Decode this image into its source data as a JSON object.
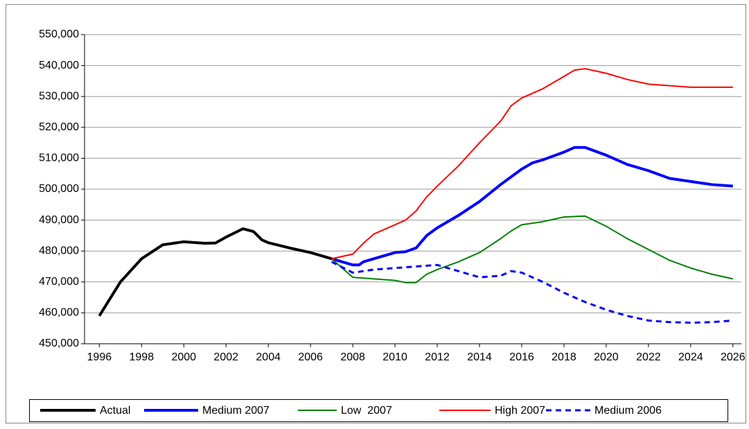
{
  "chart_data": {
    "type": "line",
    "xlim": [
      1995.3,
      2026.4
    ],
    "xticks": [
      1996,
      1998,
      2000,
      2002,
      2004,
      2006,
      2008,
      2010,
      2012,
      2014,
      2016,
      2018,
      2020,
      2022,
      2024,
      2026
    ],
    "ylim": [
      450000,
      550000
    ],
    "yticks": [
      {
        "value": 450000,
        "label": "450,000"
      },
      {
        "value": 460000,
        "label": "460,000"
      },
      {
        "value": 470000,
        "label": "470,000"
      },
      {
        "value": 480000,
        "label": "480,000"
      },
      {
        "value": 490000,
        "label": "490,000"
      },
      {
        "value": 500000,
        "label": "500,000"
      },
      {
        "value": 510000,
        "label": "510,000"
      },
      {
        "value": 520000,
        "label": "520,000"
      },
      {
        "value": 530000,
        "label": "530,000"
      },
      {
        "value": 540000,
        "label": "540,000"
      },
      {
        "value": 550000,
        "label": "550,000"
      }
    ],
    "grid": true,
    "legend": "bottom",
    "series": [
      {
        "name": "Actual",
        "color": "#000000",
        "width": 4,
        "x": [
          1996,
          1997,
          1998,
          1999,
          2000,
          2001,
          2001.5,
          2002,
          2002.8,
          2003.3,
          2003.7,
          2004,
          2005,
          2006,
          2007
        ],
        "values": [
          459000,
          470000,
          477500,
          482000,
          483000,
          482500,
          482600,
          484500,
          487200,
          486300,
          483600,
          482700,
          481000,
          479500,
          477500
        ]
      },
      {
        "name": "Medium 2007",
        "color": "#0000ff",
        "width": 4,
        "x": [
          2007,
          2007.5,
          2008,
          2008.3,
          2008.5,
          2009,
          2010,
          2010.5,
          2011,
          2011.5,
          2012,
          2013,
          2014,
          2015,
          2016,
          2016.5,
          2017,
          2018,
          2018.5,
          2019,
          2020,
          2021,
          2022,
          2023,
          2024,
          2025,
          2026
        ],
        "values": [
          477500,
          476500,
          475500,
          475500,
          476500,
          477500,
          479500,
          479800,
          481000,
          485000,
          487500,
          491500,
          496000,
          501500,
          506500,
          508500,
          509500,
          512000,
          513500,
          513500,
          511000,
          508000,
          506000,
          503500,
          502500,
          501500,
          501000
        ]
      },
      {
        "name": "Low  2007",
        "color": "#008000",
        "width": 2,
        "x": [
          2007,
          2007.5,
          2008,
          2009,
          2010,
          2010.5,
          2011,
          2011.5,
          2012,
          2013,
          2014,
          2015,
          2015.5,
          2016,
          2017,
          2018,
          2019,
          2020,
          2021,
          2022,
          2023,
          2024,
          2025,
          2026
        ],
        "values": [
          477500,
          474500,
          471500,
          471000,
          470500,
          469800,
          469800,
          472500,
          474000,
          476500,
          479500,
          484000,
          486500,
          488500,
          489500,
          491000,
          491300,
          488000,
          484000,
          480500,
          477000,
          474500,
          472500,
          471000
        ]
      },
      {
        "name": "High 2007",
        "color": "#ff0000",
        "width": 2,
        "x": [
          2007,
          2008,
          2008.5,
          2009,
          2010,
          2010.5,
          2011,
          2011.5,
          2012,
          2013,
          2014,
          2015,
          2015.5,
          2016,
          2017,
          2018,
          2018.5,
          2019,
          2020,
          2021,
          2022,
          2023,
          2024,
          2025,
          2026
        ],
        "values": [
          477500,
          479000,
          482500,
          485500,
          488500,
          490000,
          493000,
          497500,
          501000,
          507500,
          515000,
          522000,
          527000,
          529500,
          532500,
          536500,
          538500,
          539000,
          537500,
          535500,
          534000,
          533500,
          533000,
          533000,
          533000
        ]
      },
      {
        "name": "Medium 2006",
        "color": "#0000ff",
        "width": 3,
        "dashed": true,
        "x": [
          2007,
          2008,
          2009,
          2010,
          2011,
          2012,
          2013,
          2014,
          2015,
          2015.5,
          2016,
          2017,
          2018,
          2019,
          2020,
          2021,
          2022,
          2023,
          2024,
          2025,
          2026
        ],
        "values": [
          476500,
          473000,
          474000,
          474500,
          475000,
          475500,
          473500,
          471500,
          472000,
          473500,
          473000,
          470000,
          466500,
          463500,
          461000,
          459000,
          457500,
          457000,
          456800,
          457000,
          457500
        ]
      }
    ]
  }
}
